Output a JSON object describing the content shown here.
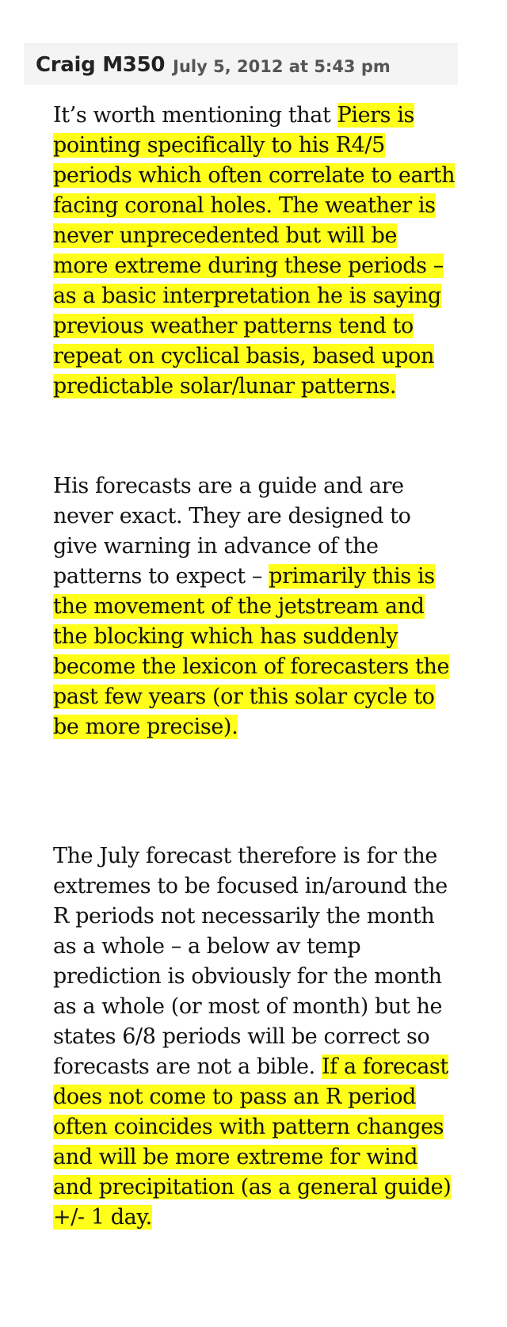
{
  "comment": {
    "author": "Craig M350",
    "date": "July 5, 2012 at 5:43 pm",
    "paragraphs": [
      {
        "before": "It’s worth mentioning that ",
        "highlight": "Piers is pointing specifically to his R4/5 periods which often correlate to earth facing coronal holes. The weather is never unprecedented but will be more extreme during these periods – as a basic interpretation he is saying previous weather patterns tend to repeat on cyclical basis, based upon predictable solar/lunar patterns.",
        "after": ""
      },
      {
        "before": "His forecasts are a guide and are never exact. They are designed to give warning in advance of the patterns to expect – ",
        "highlight": "primarily this is the movement of the jetstream and the blocking which has suddenly become the lexicon of forecasters the past few years (or this solar cycle to be more precise).",
        "after": ""
      },
      {
        "before": "The July forecast therefore is for the extremes to be focused in/around the R periods not necessarily the month as a whole – a below av temp prediction is obviously for the month as a whole (or most of month) but he states 6/8 periods will be correct so forecasts are not a bible. ",
        "highlight": "If a forecast does not come to pass an R period often coincides with pattern changes and will be more extreme for wind and precipitation (as a general guide) +/- 1 day.",
        "after": ""
      }
    ]
  },
  "colors": {
    "highlight": "#ffff19",
    "header_bg": "#f4f4f4",
    "text": "#111111"
  }
}
